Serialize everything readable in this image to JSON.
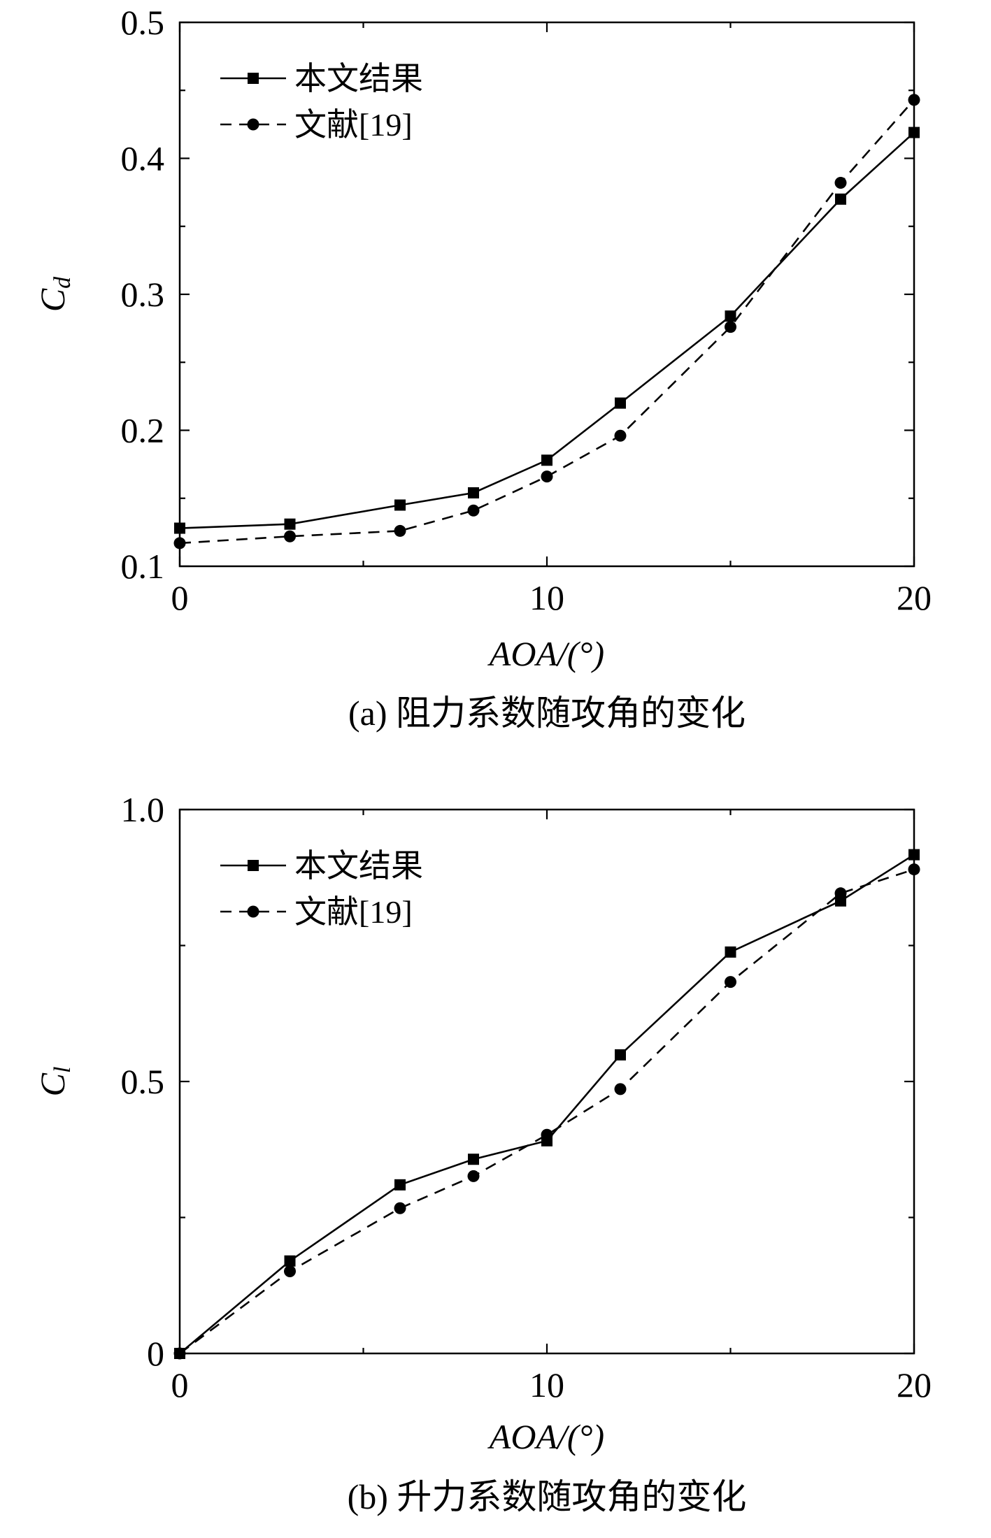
{
  "chart_data": [
    {
      "type": "line",
      "caption": "(a) 阻力系数随攻角的变化",
      "xlabel": "AOA/(°)",
      "ylabel": {
        "main": "C",
        "sub": "d"
      },
      "xlim": [
        0,
        20
      ],
      "ylim": [
        0.1,
        0.5
      ],
      "xticks": [
        0,
        10,
        20
      ],
      "xtick_labels": [
        "0",
        "10",
        "20"
      ],
      "xminor": [
        5,
        15
      ],
      "yticks": [
        0.1,
        0.2,
        0.3,
        0.4,
        0.5
      ],
      "ytick_labels": [
        "0.1",
        "0.2",
        "0.3",
        "0.4",
        "0.5"
      ],
      "yminor": [
        0.15,
        0.25,
        0.35,
        0.45
      ],
      "grid": false,
      "legend_position": "top-left",
      "series": [
        {
          "name": "本文结果",
          "style": "solid",
          "marker": "square",
          "x": [
            0,
            3,
            6,
            8,
            10,
            12,
            15,
            18,
            20
          ],
          "y": [
            0.128,
            0.131,
            0.145,
            0.154,
            0.178,
            0.22,
            0.284,
            0.37,
            0.419
          ]
        },
        {
          "name": "文献[19]",
          "style": "dashed",
          "marker": "circle",
          "x": [
            0,
            3,
            6,
            8,
            10,
            12,
            15,
            18,
            20
          ],
          "y": [
            0.117,
            0.122,
            0.126,
            0.141,
            0.166,
            0.196,
            0.276,
            0.382,
            0.443
          ]
        }
      ]
    },
    {
      "type": "line",
      "caption": "(b) 升力系数随攻角的变化",
      "xlabel": "AOA/(°)",
      "ylabel": {
        "main": "C",
        "sub": "l"
      },
      "xlim": [
        0,
        20
      ],
      "ylim": [
        0,
        1.0
      ],
      "xticks": [
        0,
        10,
        20
      ],
      "xtick_labels": [
        "0",
        "10",
        "20"
      ],
      "xminor": [
        5,
        15
      ],
      "yticks": [
        0,
        0.5,
        1.0
      ],
      "ytick_labels": [
        "0",
        "0.5",
        "1.0"
      ],
      "yminor": [
        0.25,
        0.75
      ],
      "grid": false,
      "legend_position": "top-left",
      "series": [
        {
          "name": "本文结果",
          "style": "solid",
          "marker": "square",
          "x": [
            0,
            3,
            6,
            8,
            10,
            12,
            15,
            18,
            20
          ],
          "y": [
            0,
            0.17,
            0.31,
            0.357,
            0.391,
            0.549,
            0.738,
            0.832,
            0.917
          ]
        },
        {
          "name": "文献[19]",
          "style": "dashed",
          "marker": "circle",
          "x": [
            0,
            3,
            6,
            8,
            10,
            12,
            15,
            18,
            20
          ],
          "y": [
            0,
            0.151,
            0.267,
            0.326,
            0.402,
            0.486,
            0.683,
            0.846,
            0.89
          ]
        }
      ]
    }
  ]
}
